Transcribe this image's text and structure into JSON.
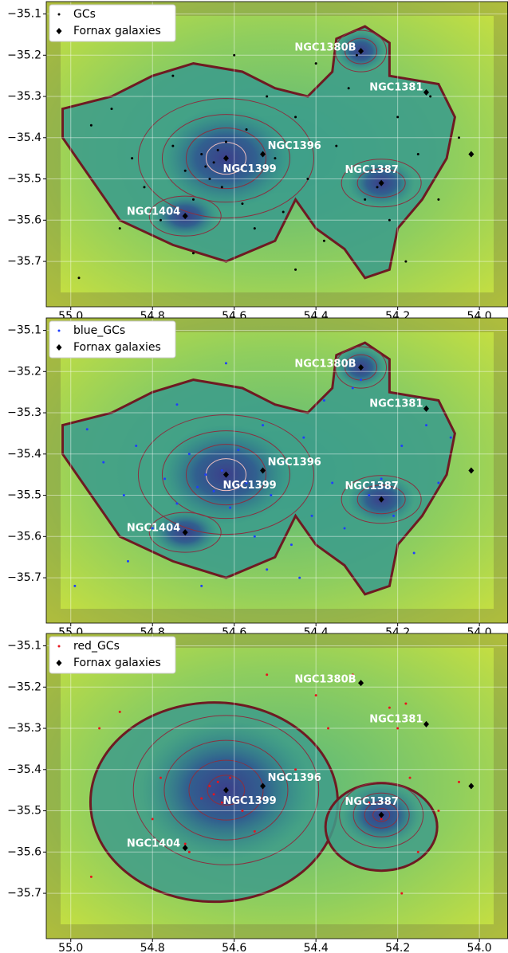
{
  "chart_data": [
    {
      "type": "scatter",
      "xlim": [
        55.06,
        53.93
      ],
      "ylim": [
        -35.81,
        -35.07
      ],
      "xticks": [
        {
          "value": 55.0,
          "label": "55.0"
        },
        54.8,
        54.6,
        54.4,
        54.2,
        {
          "value": 54.0,
          "label": "54.0"
        }
      ],
      "yticks": [
        {
          "value": -35.1,
          "label": "−35.1"
        },
        {
          "value": -35.2,
          "label": "−35.2"
        },
        {
          "value": -35.3,
          "label": "−35.3"
        },
        {
          "value": -35.4,
          "label": "−35.4"
        },
        {
          "value": -35.5,
          "label": "−35.5"
        },
        {
          "value": -35.6,
          "label": "−35.6"
        },
        {
          "value": -35.7,
          "label": "−35.7"
        }
      ],
      "grid": true,
      "legend": "upper left",
      "series": [
        {
          "name": "GCs",
          "color": "#000000",
          "marker": "dot",
          "x": [
            54.98,
            54.95,
            54.9,
            54.85,
            54.82,
            54.78,
            54.75,
            54.72,
            54.7,
            54.68,
            54.67,
            54.66,
            54.65,
            54.64,
            54.63,
            54.62,
            54.6,
            54.58,
            54.57,
            54.55,
            54.52,
            54.5,
            54.48,
            54.45,
            54.42,
            54.4,
            54.38,
            54.35,
            54.32,
            54.3,
            54.28,
            54.26,
            54.25,
            54.22,
            54.2,
            54.18,
            54.15,
            54.12,
            54.1,
            54.05,
            54.6,
            54.75,
            54.88,
            54.7,
            54.45
          ],
          "y": [
            -35.74,
            -35.37,
            -35.33,
            -35.45,
            -35.52,
            -35.6,
            -35.42,
            -35.48,
            -35.55,
            -35.44,
            -35.47,
            -35.5,
            -35.46,
            -35.43,
            -35.52,
            -35.41,
            -35.48,
            -35.56,
            -35.38,
            -35.62,
            -35.3,
            -35.45,
            -35.58,
            -35.35,
            -35.5,
            -35.22,
            -35.65,
            -35.42,
            -35.28,
            -35.2,
            -35.55,
            -35.48,
            -35.52,
            -35.6,
            -35.35,
            -35.7,
            -35.44,
            -35.3,
            -35.55,
            -35.4,
            -35.2,
            -35.25,
            -35.62,
            -35.68,
            -35.72
          ]
        },
        {
          "name": "Fornax galaxies",
          "color": "#000000",
          "marker": "diamond",
          "x": [
            54.29,
            54.13,
            54.53,
            54.62,
            54.24,
            54.72,
            54.02
          ],
          "y": [
            -35.19,
            -35.29,
            -35.44,
            -35.45,
            -35.51,
            -35.59,
            -35.44
          ],
          "labels": [
            "NGC1380B",
            "NGC1381",
            "NGC1396",
            "NGC1399",
            "NGC1387",
            "NGC1404",
            null
          ]
        }
      ]
    },
    {
      "type": "scatter",
      "xlim": [
        55.06,
        53.93
      ],
      "ylim": [
        -35.81,
        -35.07
      ],
      "xticks": [
        {
          "value": 55.0,
          "label": "55.0"
        },
        54.8,
        54.6,
        54.4,
        54.2,
        {
          "value": 54.0,
          "label": "54.0"
        }
      ],
      "yticks": [
        {
          "value": -35.1,
          "label": "−35.1"
        },
        {
          "value": -35.2,
          "label": "−35.2"
        },
        {
          "value": -35.3,
          "label": "−35.3"
        },
        {
          "value": -35.4,
          "label": "−35.4"
        },
        {
          "value": -35.5,
          "label": "−35.5"
        },
        {
          "value": -35.6,
          "label": "−35.6"
        },
        {
          "value": -35.7,
          "label": "−35.7"
        }
      ],
      "grid": true,
      "legend": "upper left",
      "series": [
        {
          "name": "blue_GCs",
          "color": "#1f3fff",
          "marker": "dot",
          "x": [
            54.99,
            54.96,
            54.92,
            54.87,
            54.84,
            54.8,
            54.77,
            54.74,
            54.71,
            54.69,
            54.67,
            54.65,
            54.63,
            54.61,
            54.59,
            54.57,
            54.55,
            54.53,
            54.51,
            54.48,
            54.46,
            54.43,
            54.41,
            54.38,
            54.36,
            54.33,
            54.31,
            54.29,
            54.27,
            54.24,
            54.21,
            54.19,
            54.16,
            54.13,
            54.1,
            54.07,
            54.62,
            54.74,
            54.86,
            54.68,
            54.44,
            54.52
          ],
          "y": [
            -35.72,
            -35.34,
            -35.42,
            -35.5,
            -35.38,
            -35.58,
            -35.46,
            -35.52,
            -35.4,
            -35.48,
            -35.45,
            -35.49,
            -35.44,
            -35.53,
            -35.39,
            -35.47,
            -35.6,
            -35.33,
            -35.5,
            -35.42,
            -35.62,
            -35.36,
            -35.55,
            -35.27,
            -35.47,
            -35.58,
            -35.24,
            -35.22,
            -35.5,
            -35.46,
            -35.55,
            -35.38,
            -35.64,
            -35.33,
            -35.47,
            -35.36,
            -35.18,
            -35.28,
            -35.66,
            -35.72,
            -35.7,
            -35.68
          ]
        },
        {
          "name": "Fornax galaxies",
          "color": "#000000",
          "marker": "diamond",
          "x": [
            54.29,
            54.13,
            54.53,
            54.62,
            54.24,
            54.72,
            54.02
          ],
          "y": [
            -35.19,
            -35.29,
            -35.44,
            -35.45,
            -35.51,
            -35.59,
            -35.44
          ],
          "labels": [
            "NGC1380B",
            "NGC1381",
            "NGC1396",
            "NGC1399",
            "NGC1387",
            "NGC1404",
            null
          ]
        }
      ]
    },
    {
      "type": "scatter",
      "xlim": [
        55.06,
        53.93
      ],
      "ylim": [
        -35.81,
        -35.07
      ],
      "xticks": [
        {
          "value": 55.0,
          "label": "55.0"
        },
        54.8,
        54.6,
        54.4,
        54.2,
        {
          "value": 54.0,
          "label": "54.0"
        }
      ],
      "yticks": [
        {
          "value": -35.1,
          "label": "−35.1"
        },
        {
          "value": -35.2,
          "label": "−35.2"
        },
        {
          "value": -35.3,
          "label": "−35.3"
        },
        {
          "value": -35.4,
          "label": "−35.4"
        },
        {
          "value": -35.5,
          "label": "−35.5"
        },
        {
          "value": -35.6,
          "label": "−35.6"
        },
        {
          "value": -35.7,
          "label": "−35.7"
        }
      ],
      "grid": true,
      "legend": "upper left",
      "series": [
        {
          "name": "red_GCs",
          "color": "#e8141e",
          "marker": "dot",
          "x": [
            54.93,
            54.88,
            54.95,
            54.8,
            54.78,
            54.72,
            54.71,
            54.68,
            54.66,
            54.65,
            54.64,
            54.63,
            54.61,
            54.58,
            54.55,
            54.52,
            54.4,
            54.37,
            54.31,
            54.27,
            54.24,
            54.22,
            54.2,
            54.18,
            54.17,
            54.19,
            54.15,
            54.05,
            54.1,
            54.45
          ],
          "y": [
            -35.3,
            -35.26,
            -35.66,
            -35.52,
            -35.42,
            -35.58,
            -35.6,
            -35.47,
            -35.44,
            -35.46,
            -35.43,
            -35.48,
            -35.42,
            -35.5,
            -35.55,
            -35.17,
            -35.22,
            -35.3,
            -35.17,
            -35.48,
            -35.52,
            -35.25,
            -35.3,
            -35.24,
            -35.42,
            -35.7,
            -35.6,
            -35.43,
            -35.5,
            -35.4
          ]
        },
        {
          "name": "Fornax galaxies",
          "color": "#000000",
          "marker": "diamond",
          "x": [
            54.29,
            54.13,
            54.53,
            54.62,
            54.24,
            54.72,
            54.02
          ],
          "y": [
            -35.19,
            -35.29,
            -35.44,
            -35.45,
            -35.51,
            -35.59,
            -35.44
          ],
          "labels": [
            "NGC1380B",
            "NGC1381",
            "NGC1396",
            "NGC1399",
            "NGC1387",
            "NGC1404",
            null
          ]
        }
      ]
    }
  ]
}
